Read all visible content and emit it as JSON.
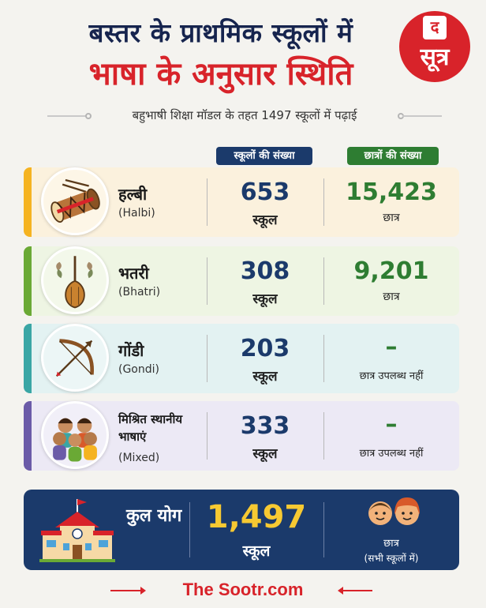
{
  "header": {
    "title_line1": "बस्तर के प्राथमिक स्कूलों में",
    "title_line2": "भाषा के अनुसार स्थिति",
    "subtitle": "बहुभाषी शिक्षा मॉडल के तहत 1497 स्कूलों में पढ़ाई",
    "logo": {
      "top": "द",
      "word": "सूत्र"
    }
  },
  "columns": {
    "schools": "स्कूलों की संख्या",
    "students": "छात्रों की संख्या"
  },
  "rows": [
    {
      "name": "हल्बी",
      "latin": "(Halbi)",
      "schools": "653",
      "schools_unit": "स्कूल",
      "students": "15,423",
      "students_unit": "छात्र",
      "icon": "drum-icon",
      "accent": "#f5b321"
    },
    {
      "name": "भतरी",
      "latin": "(Bhatri)",
      "schools": "308",
      "schools_unit": "स्कूल",
      "students": "9,201",
      "students_unit": "छात्र",
      "icon": "instrument-icon",
      "accent": "#6aa935"
    },
    {
      "name": "गोंडी",
      "latin": "(Gondi)",
      "schools": "203",
      "schools_unit": "स्कूल",
      "students": "–",
      "students_unit": "छात्र उपलब्ध नहीं",
      "icon": "bow-arrow-icon",
      "accent": "#3aa6a5"
    },
    {
      "name": "मिश्रित स्थानीय भाषाएं",
      "latin": "(Mixed)",
      "schools": "333",
      "schools_unit": "स्कूल",
      "students": "–",
      "students_unit": "छात्र उपलब्ध नहीं",
      "icon": "children-icon",
      "accent": "#6b5ba8"
    }
  ],
  "total": {
    "label": "कुल योग",
    "schools": "1,497",
    "schools_unit": "स्कूल",
    "students_label": "छात्र",
    "students_note": "(सभी स्कूलों में)"
  },
  "footer": {
    "site": "The Sootr.com"
  },
  "colors": {
    "navy": "#1b3a6b",
    "red": "#d8232a",
    "green": "#2e7d32",
    "gold": "#f7c932"
  }
}
